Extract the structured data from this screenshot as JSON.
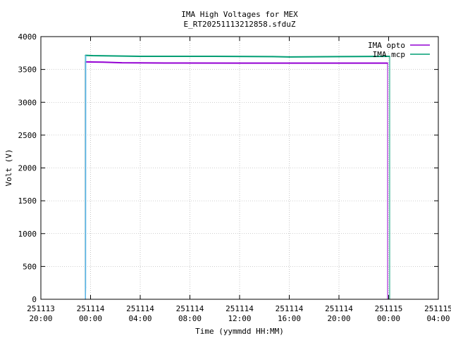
{
  "chart_data": {
    "type": "line",
    "title": "IMA High Voltages for MEX",
    "subtitle": "E_RT20251113212858.sfduZ",
    "xlabel": "Time (yymmdd HH:MM)",
    "ylabel": "Volt (V)",
    "x_ticks": [
      {
        "date": "251113",
        "time": "20:00"
      },
      {
        "date": "251114",
        "time": "00:00"
      },
      {
        "date": "251114",
        "time": "04:00"
      },
      {
        "date": "251114",
        "time": "08:00"
      },
      {
        "date": "251114",
        "time": "12:00"
      },
      {
        "date": "251114",
        "time": "16:00"
      },
      {
        "date": "251114",
        "time": "20:00"
      },
      {
        "date": "251115",
        "time": "00:00"
      },
      {
        "date": "251115",
        "time": "04:00"
      }
    ],
    "xlim": [
      "2025-11-13 20:00",
      "2025-11-15 04:00"
    ],
    "ylim": [
      0,
      4000
    ],
    "y_ticks": [
      "0",
      "500",
      "1000",
      "1500",
      "2000",
      "2500",
      "3000",
      "3500",
      "4000"
    ],
    "grid": true,
    "legend_position": "top-right",
    "series": [
      {
        "name": "IMA opto",
        "color": "#9400d3",
        "points": [
          {
            "x": "2025-11-13 23:35",
            "y": 3615
          },
          {
            "x": "2025-11-14 01:00",
            "y": 3612
          },
          {
            "x": "2025-11-14 02:30",
            "y": 3602
          },
          {
            "x": "2025-11-14 06:00",
            "y": 3598
          },
          {
            "x": "2025-11-14 12:00",
            "y": 3597
          },
          {
            "x": "2025-11-14 18:00",
            "y": 3597
          },
          {
            "x": "2025-11-14 23:55",
            "y": 3597
          }
        ]
      },
      {
        "name": "IMA mcp",
        "color": "#009e73",
        "points": [
          {
            "x": "2025-11-13 23:35",
            "y": 3715
          },
          {
            "x": "2025-11-14 00:10",
            "y": 3710
          },
          {
            "x": "2025-11-14 04:00",
            "y": 3700
          },
          {
            "x": "2025-11-14 10:00",
            "y": 3700
          },
          {
            "x": "2025-11-14 14:40",
            "y": 3695
          },
          {
            "x": "2025-11-14 16:00",
            "y": 3690
          },
          {
            "x": "2025-11-14 20:00",
            "y": 3695
          },
          {
            "x": "2025-11-15 00:05",
            "y": 3700
          }
        ]
      },
      {
        "name": "",
        "color": "#56b4e9",
        "points": [
          {
            "x": "2025-11-13 23:35",
            "y": 0
          },
          {
            "x": "2025-11-13 23:36",
            "y": 180
          },
          {
            "x": "2025-11-13 23:37",
            "y": 3710
          }
        ]
      }
    ]
  }
}
